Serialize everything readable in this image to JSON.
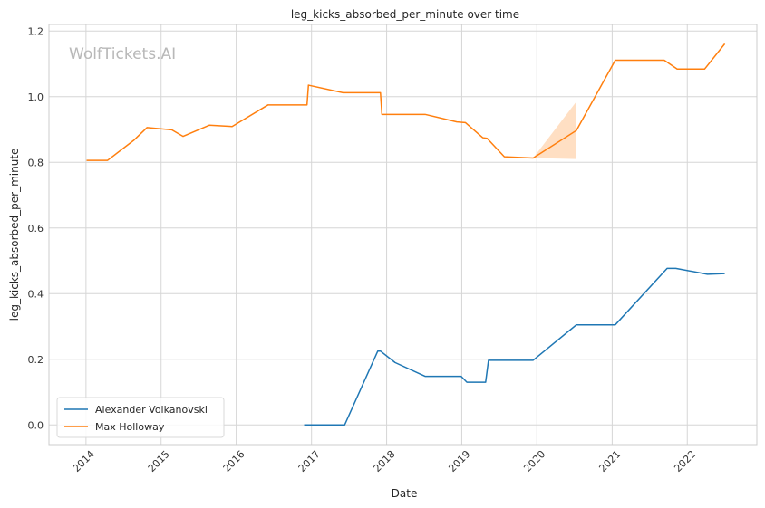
{
  "chart_data": {
    "type": "line",
    "title": "leg_kicks_absorbed_per_minute over time",
    "xlabel": "Date",
    "ylabel": "leg_kicks_absorbed_per_minute",
    "watermark": "WolfTickets.AI",
    "xlim": [
      "2013-07-05",
      "2022-12-05"
    ],
    "ylim": [
      -0.06,
      1.22
    ],
    "x_ticks": [
      "2014",
      "2015",
      "2016",
      "2017",
      "2018",
      "2019",
      "2020",
      "2021",
      "2022"
    ],
    "y_ticks": [
      "0.0",
      "0.2",
      "0.4",
      "0.6",
      "0.8",
      "1.0",
      "1.2"
    ],
    "grid": true,
    "legend_position": "lower-left",
    "colors": {
      "Alexander Volkanovski": "#1f77b4",
      "Max Holloway": "#ff7f0e"
    },
    "series": [
      {
        "name": "Alexander Volkanovski",
        "x": [
          "2016-11-26",
          "2017-06-11",
          "2017-11-19",
          "2017-12-02",
          "2018-02-11",
          "2018-07-07",
          "2018-12-29",
          "2019-01-26",
          "2019-04-27",
          "2019-05-11",
          "2019-12-14",
          "2020-07-11",
          "2021-01-16",
          "2021-09-25",
          "2021-11-06",
          "2022-04-09",
          "2022-07-02"
        ],
        "y": [
          0.0,
          0.0,
          0.225,
          0.225,
          0.19,
          0.148,
          0.148,
          0.13,
          0.13,
          0.197,
          0.197,
          0.305,
          0.305,
          0.477,
          0.477,
          0.459,
          0.461
        ]
      },
      {
        "name": "Max Holloway",
        "x": [
          "2014-01-04",
          "2014-04-16",
          "2014-08-23",
          "2014-10-25",
          "2015-02-22",
          "2015-04-18",
          "2015-08-23",
          "2015-12-12",
          "2016-06-04",
          "2016-12-10",
          "2016-12-17",
          "2017-06-03",
          "2017-12-02",
          "2017-12-09",
          "2018-07-07",
          "2018-12-08",
          "2019-01-19",
          "2019-04-13",
          "2019-05-04",
          "2019-07-27",
          "2019-12-14",
          "2020-07-11",
          "2021-01-16",
          "2021-09-11",
          "2021-11-13",
          "2022-03-26",
          "2022-07-02"
        ],
        "y": [
          0.806,
          0.806,
          0.868,
          0.906,
          0.899,
          0.879,
          0.913,
          0.909,
          0.975,
          0.975,
          1.035,
          1.012,
          1.012,
          0.946,
          0.946,
          0.923,
          0.921,
          0.875,
          0.873,
          0.817,
          0.813,
          0.897,
          1.111,
          1.111,
          1.084,
          1.084,
          1.161
        ]
      }
    ],
    "confidence_band": {
      "series": "Max Holloway",
      "x": [
        "2019-12-14",
        "2020-07-11"
      ],
      "upper": [
        0.813,
        0.985
      ],
      "lower": [
        0.813,
        0.81
      ]
    }
  }
}
